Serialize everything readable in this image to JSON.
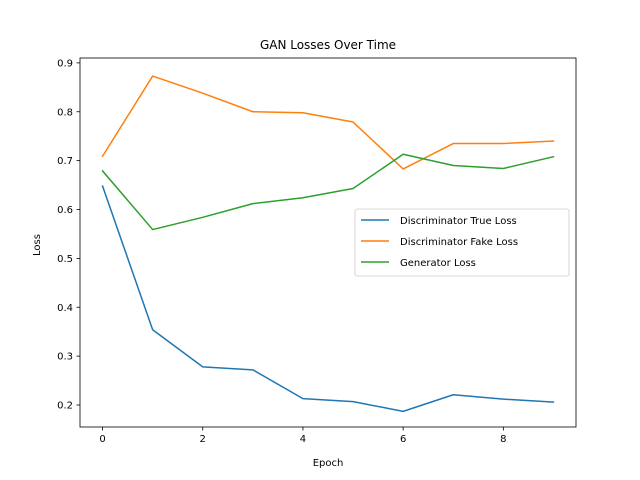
{
  "chart_data": {
    "type": "line",
    "title": "GAN Losses Over Time",
    "xlabel": "Epoch",
    "ylabel": "Loss",
    "x": [
      0,
      1,
      2,
      3,
      4,
      5,
      6,
      7,
      8,
      9
    ],
    "xlim": [
      -0.45,
      9.45
    ],
    "ylim": [
      0.155,
      0.91
    ],
    "xticks": [
      0,
      2,
      4,
      6,
      8
    ],
    "xtick_labels": [
      "0",
      "2",
      "4",
      "6",
      "8"
    ],
    "yticks": [
      0.2,
      0.3,
      0.4,
      0.5,
      0.6,
      0.7,
      0.8,
      0.9
    ],
    "ytick_labels": [
      "0.2",
      "0.3",
      "0.4",
      "0.5",
      "0.6",
      "0.7",
      "0.8",
      "0.9"
    ],
    "grid": false,
    "legend_position": "center-right",
    "series": [
      {
        "name": "Discriminator True Loss",
        "color": "#1f77b4",
        "values": [
          0.648,
          0.354,
          0.278,
          0.272,
          0.213,
          0.207,
          0.187,
          0.221,
          0.212,
          0.206
        ]
      },
      {
        "name": "Discriminator Fake Loss",
        "color": "#ff7f0e",
        "values": [
          0.709,
          0.873,
          0.838,
          0.8,
          0.798,
          0.779,
          0.683,
          0.735,
          0.735,
          0.74
        ]
      },
      {
        "name": "Generator Loss",
        "color": "#2ca02c",
        "values": [
          0.679,
          0.559,
          0.584,
          0.612,
          0.624,
          0.643,
          0.713,
          0.69,
          0.684,
          0.708
        ]
      }
    ]
  }
}
